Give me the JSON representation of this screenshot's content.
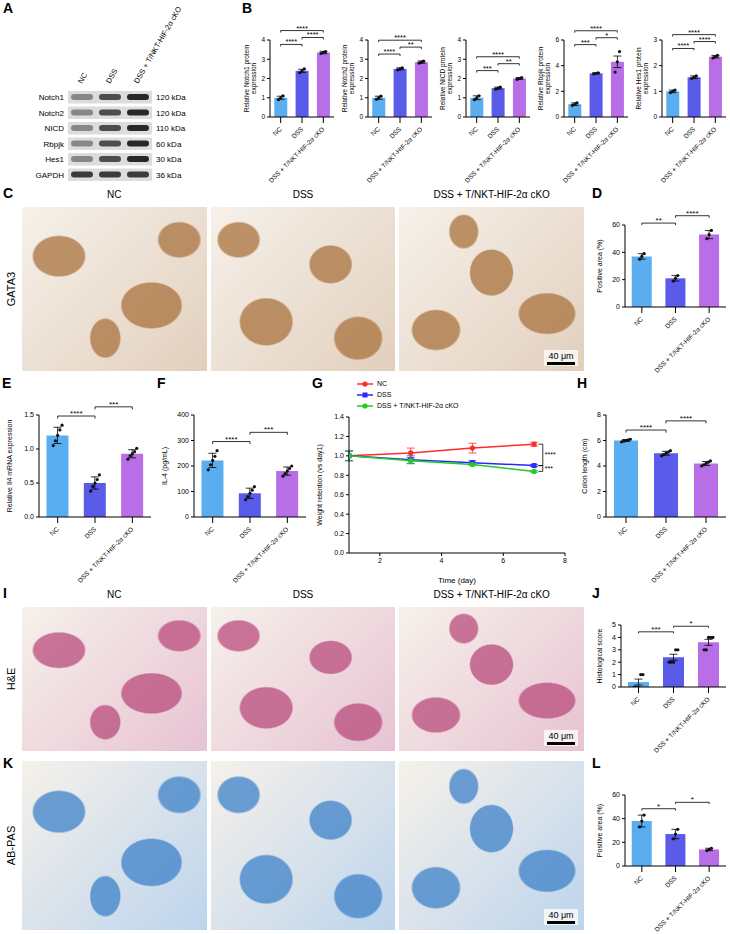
{
  "blot": {
    "panel": "A",
    "lanes": [
      "NC",
      "DSS",
      "DSS + T/NKT-HIF-2α cKO"
    ],
    "bands": [
      {
        "name": "Notch1",
        "size": "120 kDa"
      },
      {
        "name": "Notch2",
        "size": "120 kDa"
      },
      {
        "name": "NICD",
        "size": "110 kDa"
      },
      {
        "name": "Rbpjk",
        "size": "60 kDa"
      },
      {
        "name": "Hes1",
        "size": "30 kDa"
      },
      {
        "name": "GAPDH",
        "size": "36 kDa"
      }
    ]
  },
  "images": [
    {
      "panel": "C",
      "stain": "GATA3",
      "columns": [
        "NC",
        "DSS",
        "DSS + T/NKT-HIF-2α cKO"
      ],
      "scale_bar": "40 μm",
      "color": "#a8703a"
    },
    {
      "panel": "I",
      "stain": "H&E",
      "columns": [
        "NC",
        "DSS",
        "DSS + T/NKT-HIF-2α cKO"
      ],
      "scale_bar": "40 μm",
      "color": "#b8487a"
    },
    {
      "panel": "K",
      "stain": "AB-PAS",
      "scale_bar": "40 μm",
      "color": "#3a7fc8"
    }
  ],
  "chart_data": [
    {
      "panel": "B",
      "type": "bar",
      "y_label": "Relative Notch1 protein expression",
      "categories": [
        "NC",
        "DSS",
        "DSS + T/NKT-HIF-2α cKO"
      ],
      "values": [
        1.0,
        2.4,
        3.35
      ],
      "errors": [
        0.08,
        0.08,
        0.06
      ],
      "points": [
        [
          0.9,
          1.0,
          1.1
        ],
        [
          2.3,
          2.4,
          2.5
        ],
        [
          3.3,
          3.35,
          3.4
        ]
      ],
      "colors": [
        "#5aaef0",
        "#5b5bea",
        "#b86ee6"
      ],
      "ylim": [
        0,
        4
      ],
      "yticks": [
        0,
        1,
        2,
        3,
        4
      ],
      "significance": [
        {
          "pair": [
            "NC",
            "DSS"
          ],
          "label": "****"
        },
        {
          "pair": [
            "DSS",
            "DSS + T/NKT-HIF-2α cKO"
          ],
          "label": "****"
        },
        {
          "pair": [
            "NC",
            "DSS + T/NKT-HIF-2α cKO"
          ],
          "label": "****"
        }
      ]
    },
    {
      "type": "bar",
      "y_label": "Relative Notch2 protein expression",
      "categories": [
        "NC",
        "DSS",
        "DSS + T/NKT-HIF-2α cKO"
      ],
      "values": [
        1.0,
        2.5,
        2.85
      ],
      "errors": [
        0.08,
        0.05,
        0.06
      ],
      "points": [
        [
          0.92,
          1.0,
          1.08
        ],
        [
          2.45,
          2.5,
          2.55
        ],
        [
          2.8,
          2.85,
          2.9
        ]
      ],
      "colors": [
        "#5aaef0",
        "#5b5bea",
        "#b86ee6"
      ],
      "ylim": [
        0,
        4
      ],
      "yticks": [
        0,
        1,
        2,
        3,
        4
      ],
      "significance": [
        {
          "pair": [
            "NC",
            "DSS"
          ],
          "label": "****"
        },
        {
          "pair": [
            "DSS",
            "DSS + T/NKT-HIF-2α cKO"
          ],
          "label": "**"
        },
        {
          "pair": [
            "NC",
            "DSS + T/NKT-HIF-2α cKO"
          ],
          "label": "****"
        }
      ]
    },
    {
      "type": "bar",
      "y_label": "Relative NICD protein expression",
      "categories": [
        "NC",
        "DSS",
        "DSS + T/NKT-HIF-2α cKO"
      ],
      "values": [
        1.0,
        1.5,
        2.0
      ],
      "errors": [
        0.1,
        0.05,
        0.05
      ],
      "points": [
        [
          0.9,
          1.0,
          1.1
        ],
        [
          1.45,
          1.5,
          1.55
        ],
        [
          1.95,
          2.0,
          2.05
        ]
      ],
      "colors": [
        "#5aaef0",
        "#5b5bea",
        "#b86ee6"
      ],
      "ylim": [
        0,
        4
      ],
      "yticks": [
        0,
        1,
        2,
        3,
        4
      ],
      "significance": [
        {
          "pair": [
            "NC",
            "DSS"
          ],
          "label": "***"
        },
        {
          "pair": [
            "DSS",
            "DSS + T/NKT-HIF-2α cKO"
          ],
          "label": "**"
        },
        {
          "pair": [
            "NC",
            "DSS + T/NKT-HIF-2α cKO"
          ],
          "label": "****"
        }
      ]
    },
    {
      "type": "bar",
      "y_label": "Relative Rbpjk protein expression",
      "categories": [
        "NC",
        "DSS",
        "DSS + T/NKT-HIF-2α cKO"
      ],
      "values": [
        1.0,
        3.4,
        4.3
      ],
      "errors": [
        0.1,
        0.05,
        0.45
      ],
      "points": [
        [
          0.9,
          1.0,
          1.1
        ],
        [
          3.35,
          3.4,
          3.45
        ],
        [
          3.5,
          4.3,
          5.1
        ]
      ],
      "colors": [
        "#5aaef0",
        "#5b5bea",
        "#b86ee6"
      ],
      "ylim": [
        0,
        6
      ],
      "yticks": [
        0,
        2,
        4,
        6
      ],
      "significance": [
        {
          "pair": [
            "NC",
            "DSS"
          ],
          "label": "***"
        },
        {
          "pair": [
            "DSS",
            "DSS + T/NKT-HIF-2α cKO"
          ],
          "label": "*"
        },
        {
          "pair": [
            "NC",
            "DSS + T/NKT-HIF-2α cKO"
          ],
          "label": "****"
        }
      ]
    },
    {
      "type": "bar",
      "y_label": "Relative Hes1 protein expression",
      "categories": [
        "NC",
        "DSS",
        "DSS + T/NKT-HIF-2α cKO"
      ],
      "values": [
        1.0,
        1.55,
        2.35
      ],
      "errors": [
        0.05,
        0.05,
        0.05
      ],
      "points": [
        [
          0.95,
          1.0,
          1.05
        ],
        [
          1.5,
          1.55,
          1.6
        ],
        [
          2.3,
          2.35,
          2.4
        ]
      ],
      "colors": [
        "#5aaef0",
        "#5b5bea",
        "#b86ee6"
      ],
      "ylim": [
        0,
        3
      ],
      "yticks": [
        0,
        1,
        2,
        3
      ],
      "significance": [
        {
          "pair": [
            "NC",
            "DSS"
          ],
          "label": "****"
        },
        {
          "pair": [
            "DSS",
            "DSS + T/NKT-HIF-2α cKO"
          ],
          "label": "****"
        },
        {
          "pair": [
            "NC",
            "DSS + T/NKT-HIF-2α cKO"
          ],
          "label": "****"
        }
      ]
    },
    {
      "panel": "D",
      "type": "bar",
      "y_label": "Positive area (%)",
      "categories": [
        "NC",
        "DSS",
        "DSS + T/NKT-HIF-2α cKO"
      ],
      "values": [
        37,
        21,
        53
      ],
      "errors": [
        2,
        2,
        3
      ],
      "points": [
        [
          35,
          37,
          39
        ],
        [
          19,
          21,
          23
        ],
        [
          50,
          53,
          56
        ]
      ],
      "colors": [
        "#5aaef0",
        "#5b5bea",
        "#b86ee6"
      ],
      "ylim": [
        0,
        60
      ],
      "yticks": [
        0,
        20,
        40,
        60
      ],
      "significance": [
        {
          "pair": [
            "NC",
            "DSS"
          ],
          "label": "**"
        },
        {
          "pair": [
            "DSS",
            "DSS + T/NKT-HIF-2α cKO"
          ],
          "label": "****"
        }
      ]
    },
    {
      "panel": "E",
      "type": "bar",
      "y_label": "Relative Il4 mRNA expression",
      "categories": [
        "NC",
        "DSS",
        "DSS + T/NKT-HIF-2α cKO"
      ],
      "values": [
        1.2,
        0.5,
        0.93
      ],
      "errors": [
        0.12,
        0.09,
        0.06
      ],
      "points": [
        [
          1.05,
          1.12,
          1.2,
          1.28,
          1.35
        ],
        [
          0.38,
          0.45,
          0.5,
          0.55,
          0.62
        ],
        [
          0.85,
          0.9,
          0.93,
          0.96,
          1.01
        ]
      ],
      "colors": [
        "#5aaef0",
        "#5b5bea",
        "#b86ee6"
      ],
      "ylim": [
        0,
        1.5
      ],
      "yticks": [
        {
          "value": 0,
          "label": "0.0"
        },
        0.5,
        {
          "value": 1,
          "label": "1.0"
        },
        1.5
      ],
      "significance": [
        {
          "pair": [
            "NC",
            "DSS"
          ],
          "label": "****"
        },
        {
          "pair": [
            "DSS",
            "DSS + T/NKT-HIF-2α cKO"
          ],
          "label": "***"
        }
      ]
    },
    {
      "panel": "F",
      "type": "bar",
      "y_label": "IL-4 (pg/mL)",
      "categories": [
        "NC",
        "DSS",
        "DSS + T/NKT-HIF-2α cKO"
      ],
      "values": [
        222,
        93,
        180
      ],
      "errors": [
        28,
        20,
        16
      ],
      "points": [
        [
          185,
          205,
          222,
          238,
          260
        ],
        [
          68,
          80,
          93,
          105,
          119
        ],
        [
          160,
          170,
          180,
          190,
          200
        ]
      ],
      "colors": [
        "#5aaef0",
        "#5b5bea",
        "#b86ee6"
      ],
      "ylim": [
        0,
        400
      ],
      "yticks": [
        0,
        100,
        200,
        300,
        400
      ],
      "significance": [
        {
          "pair": [
            "NC",
            "DSS"
          ],
          "label": "****"
        },
        {
          "pair": [
            "DSS",
            "DSS + T/NKT-HIF-2α cKO"
          ],
          "label": "***"
        }
      ]
    },
    {
      "panel": "G",
      "type": "line",
      "x_label": "Time (day)",
      "y_label": "Weight retention (vs day1)",
      "x": [
        1,
        3,
        5,
        7
      ],
      "xlim": [
        1,
        8
      ],
      "xticks": [
        2,
        4,
        6,
        8
      ],
      "ylim": [
        0,
        1.4
      ],
      "yticks": [
        {
          "value": 0,
          "label": "0.0"
        },
        0.2,
        0.4,
        0.6,
        0.8,
        {
          "value": 1,
          "label": "1.0"
        },
        1.2,
        1.4
      ],
      "legend": "top-left",
      "series": [
        {
          "name": "NC",
          "color": "#ff2a2a",
          "marker": "circle",
          "values": [
            1.0,
            1.03,
            1.08,
            1.12
          ],
          "errors": [
            0.05,
            0.05,
            0.05,
            0.02
          ]
        },
        {
          "name": "DSS",
          "color": "#2a2aff",
          "marker": "square",
          "values": [
            1.0,
            0.96,
            0.93,
            0.9
          ],
          "errors": [
            0.05,
            0.04,
            0.02,
            0.01
          ]
        },
        {
          "name": "DSS + T/NKT-HIF-2α cKO",
          "color": "#22cc22",
          "marker": "circle",
          "values": [
            1.0,
            0.95,
            0.91,
            0.84
          ],
          "errors": [
            0.05,
            0.03,
            0.01,
            0.01
          ]
        }
      ],
      "significance": [
        {
          "x": 7,
          "pair": [
            "NC",
            "DSS"
          ],
          "label": "****"
        },
        {
          "x": 7,
          "pair": [
            "DSS",
            "DSS + T/NKT-HIF-2α cKO"
          ],
          "label": "***"
        }
      ]
    },
    {
      "panel": "H",
      "type": "bar",
      "y_label": "Colon length (cm)",
      "categories": [
        "NC",
        "DSS",
        "DSS + T/NKT-HIF-2α cKO"
      ],
      "values": [
        6.0,
        5.0,
        4.2
      ],
      "errors": [
        0.08,
        0.15,
        0.15
      ],
      "points": [
        [
          5.9,
          5.95,
          6.0,
          6.05,
          6.1
        ],
        [
          4.8,
          4.9,
          5.0,
          5.1,
          5.2
        ],
        [
          4.0,
          4.1,
          4.2,
          4.3,
          4.4
        ]
      ],
      "colors": [
        "#5aaef0",
        "#5b5bea",
        "#b86ee6"
      ],
      "ylim": [
        0,
        8
      ],
      "yticks": [
        0,
        2,
        4,
        6,
        8
      ],
      "significance": [
        {
          "pair": [
            "NC",
            "DSS"
          ],
          "label": "****"
        },
        {
          "pair": [
            "DSS",
            "DSS + T/NKT-HIF-2α cKO"
          ],
          "label": "****"
        }
      ]
    },
    {
      "panel": "J",
      "type": "bar",
      "y_label": "Histological score",
      "categories": [
        "NC",
        "DSS",
        "DSS + T/NKT-HIF-2α cKO"
      ],
      "values": [
        0.4,
        2.4,
        3.6
      ],
      "errors": [
        0.24,
        0.24,
        0.24
      ],
      "points": [
        [
          0,
          0,
          0,
          1,
          1
        ],
        [
          2,
          2,
          2,
          3,
          3
        ],
        [
          3,
          3,
          4,
          4,
          4
        ]
      ],
      "colors": [
        "#5aaef0",
        "#5b5bea",
        "#b86ee6"
      ],
      "ylim": [
        0,
        5
      ],
      "yticks": [
        0,
        1,
        2,
        3,
        4,
        5
      ],
      "significance": [
        {
          "pair": [
            "NC",
            "DSS"
          ],
          "label": "***"
        },
        {
          "pair": [
            "DSS",
            "DSS + T/NKT-HIF-2α cKO"
          ],
          "label": "*"
        }
      ]
    },
    {
      "panel": "L",
      "type": "bar",
      "y_label": "Positive area (%)",
      "categories": [
        "NC",
        "DSS",
        "DSS + T/NKT-HIF-2α cKO"
      ],
      "values": [
        38,
        27,
        14
      ],
      "errors": [
        5,
        4,
        1
      ],
      "points": [
        [
          33,
          38,
          43
        ],
        [
          23,
          27,
          31
        ],
        [
          13,
          14,
          15
        ]
      ],
      "colors": [
        "#5aaef0",
        "#5b5bea",
        "#b86ee6"
      ],
      "ylim": [
        0,
        60
      ],
      "yticks": [
        0,
        20,
        40,
        60
      ],
      "significance": [
        {
          "pair": [
            "NC",
            "DSS"
          ],
          "label": "*"
        },
        {
          "pair": [
            "DSS",
            "DSS + T/NKT-HIF-2α cKO"
          ],
          "label": "*"
        }
      ]
    }
  ]
}
